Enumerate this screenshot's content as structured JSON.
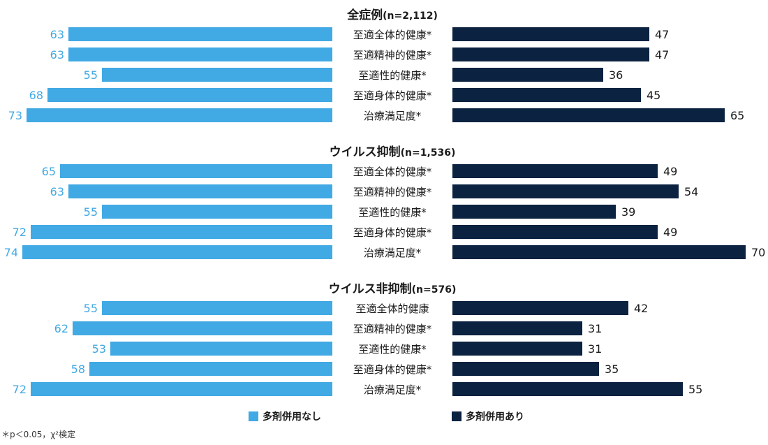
{
  "chart_data": {
    "type": "bar",
    "orientation": "horizontal-butterfly",
    "colors": {
      "left": "#41a9e3",
      "right": "#0b2240"
    },
    "legend": {
      "placement": "bottom-center",
      "left_label": "多剤併用なし",
      "right_label": "多剤併用あり"
    },
    "footnote": "＊p＜0.05，χ²検定",
    "groups": [
      {
        "title": "全症例",
        "n_label": "(n=2,112)",
        "categories": [
          "至適全体的健康*",
          "至適精神的健康*",
          "至適性的健康*",
          "至適身体的健康*",
          "治療満足度*"
        ],
        "series": [
          {
            "name": "多剤併用なし",
            "values": [
              63,
              63,
              55,
              68,
              73
            ]
          },
          {
            "name": "多剤併用あり",
            "values": [
              47,
              47,
              36,
              45,
              65
            ]
          }
        ]
      },
      {
        "title": "ウイルス抑制",
        "n_label": "(n=1,536)",
        "categories": [
          "至適全体的健康*",
          "至適精神的健康*",
          "至適性的健康*",
          "至適身体的健康*",
          "治療満足度*"
        ],
        "series": [
          {
            "name": "多剤併用なし",
            "values": [
              65,
              63,
              55,
              72,
              74
            ]
          },
          {
            "name": "多剤併用あり",
            "values": [
              49,
              54,
              39,
              49,
              70
            ]
          }
        ]
      },
      {
        "title": "ウイルス非抑制",
        "n_label": "(n=576)",
        "categories": [
          "至適全体的健康",
          "至適精神的健康*",
          "至適性的健康*",
          "至適身体的健康*",
          "治療満足度*"
        ],
        "series": [
          {
            "name": "多剤併用なし",
            "values": [
              55,
              62,
              53,
              58,
              72
            ]
          },
          {
            "name": "多剤併用あり",
            "values": [
              42,
              31,
              31,
              35,
              55
            ]
          }
        ]
      }
    ]
  }
}
